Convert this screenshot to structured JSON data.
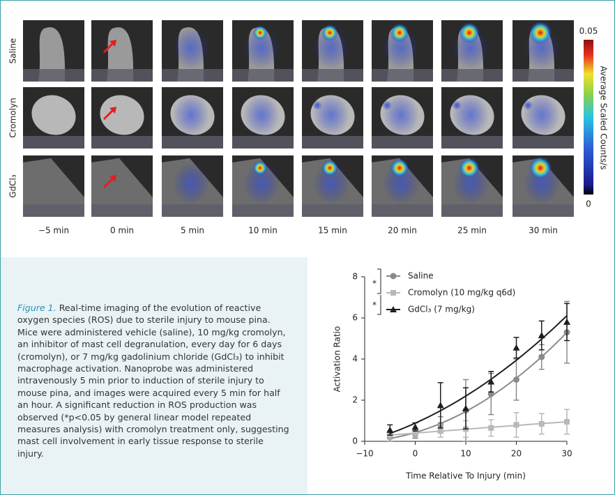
{
  "figure": {
    "row_labels": [
      "Saline",
      "Cromolyn",
      "GdCl₃"
    ],
    "column_labels": [
      "−5 min",
      "0 min",
      "5 min",
      "10 min",
      "15 min",
      "20 min",
      "25 min",
      "30 min"
    ],
    "colorbar": {
      "lim": [
        0,
        0.05
      ],
      "label": "Average Scaled Counts/s"
    }
  },
  "caption": {
    "lead": "Figure 1.",
    "text": "Real-time imaging of the evolution of reactive oxygen species (ROS) due to sterile injury to mouse pina. Mice were administered vehicle (saline), 10 mg/kg cromolyn, an inhibitor of mast cell degranulation, every day for 6 days (cromolyn), or 7 mg/kg gadolinium chloride (GdCl₃) to inhibit macrophage activation. Nanoprobe was administered intravenously 5 min prior to induction of sterile injury to mouse pina, and images were acquired every 5 min for half an hour. A significant reduction in ROS production was observed (*p<0.05 by general linear model repeated measures analysis) with cromolyn treatment only, suggesting mast cell involvement in early tissue response to sterile injury."
  },
  "chart_data": {
    "type": "line",
    "x_label": "Time Relative To Injury (min)",
    "y_label": "Activation Ratio",
    "x": [
      -5,
      0,
      5,
      10,
      15,
      20,
      25,
      30
    ],
    "series": [
      {
        "name": "Saline",
        "color": "#8a8a8a",
        "marker": "circle",
        "values": [
          0.2,
          0.35,
          0.8,
          1.5,
          2.3,
          3.0,
          4.1,
          5.3
        ],
        "errors": [
          0.2,
          0.2,
          0.4,
          1.5,
          1.0,
          1.0,
          0.6,
          1.5
        ]
      },
      {
        "name": "Cromolyn (10 mg/kg q6d)",
        "color": "#b8b8b8",
        "marker": "square",
        "values": [
          0.3,
          0.4,
          0.5,
          0.6,
          0.65,
          0.8,
          0.85,
          0.95
        ],
        "errors": [
          0.2,
          0.2,
          0.3,
          0.4,
          0.4,
          0.6,
          0.5,
          0.6
        ]
      },
      {
        "name": "GdCl₃ (7 mg/kg)",
        "color": "#1e1e1e",
        "marker": "triangle",
        "values": [
          0.55,
          0.7,
          1.75,
          1.6,
          2.9,
          4.55,
          5.15,
          5.8
        ],
        "errors": [
          0.25,
          0.2,
          1.1,
          1.0,
          0.5,
          0.5,
          0.7,
          0.9
        ]
      }
    ],
    "annotations": [
      "*",
      "*"
    ],
    "xlim": [
      -10,
      30
    ],
    "xticks": [
      {
        "value": -10,
        "label": "−10"
      },
      0,
      10,
      20,
      30
    ],
    "ylim": [
      0,
      8
    ],
    "yticks": [
      0,
      2,
      4,
      6,
      8
    ]
  }
}
